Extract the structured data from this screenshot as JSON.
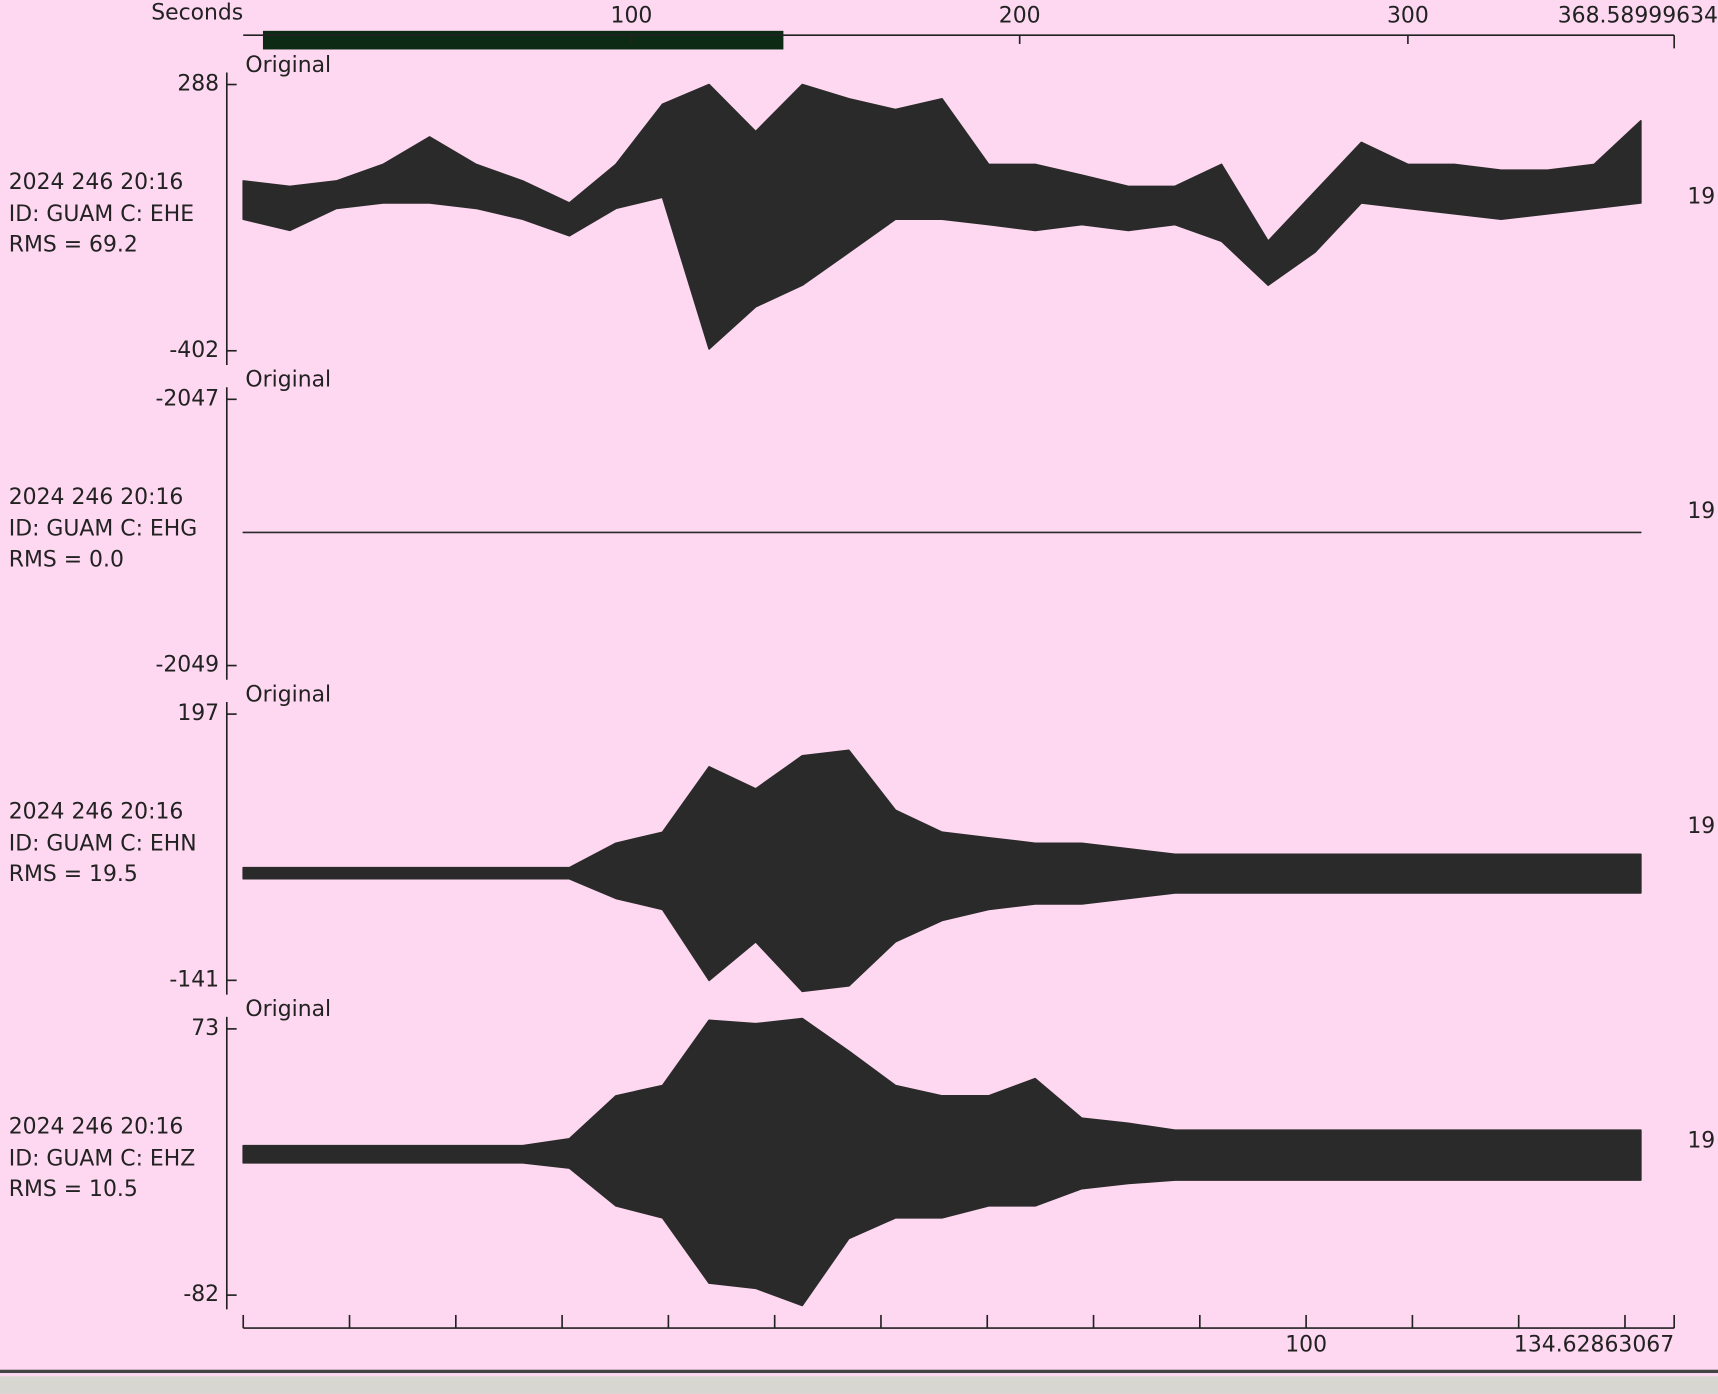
{
  "top_axis": {
    "title": "Seconds",
    "xlim": [
      0,
      368.58999634
    ],
    "xticks": [
      100,
      200,
      300
    ]
  },
  "sample_times": [
    0,
    12,
    24,
    36,
    48,
    60,
    72,
    84,
    96,
    108,
    120,
    132,
    144,
    156,
    168,
    180,
    192,
    204,
    216,
    228,
    240,
    252,
    264,
    276,
    288,
    300,
    312,
    324,
    336,
    348,
    360
  ],
  "traces": [
    {
      "tag": "Original",
      "time": "2024 246 20:16",
      "id": "ID: GUAM C: EHE",
      "rms": "RMS = 69.2",
      "right_label": "19",
      "ylim": [
        -402,
        288
      ],
      "yticks": [
        -402,
        288
      ],
      "max": [
        38,
        24,
        38,
        81,
        152,
        81,
        38,
        -19,
        81,
        237,
        288,
        166,
        288,
        251,
        223,
        251,
        81,
        81,
        53,
        24,
        24,
        81,
        -118,
        10,
        138,
        81,
        81,
        66,
        66,
        81,
        194
      ],
      "min": [
        -61,
        -90,
        -33,
        -19,
        -19,
        -33,
        -61,
        -104,
        -33,
        -4,
        -397,
        -288,
        -232,
        -147,
        -61,
        -61,
        -75,
        -90,
        -75,
        -90,
        -75,
        -118,
        -232,
        -147,
        -19,
        -33,
        -47,
        -61,
        -47,
        -33,
        -19
      ]
    },
    {
      "tag": "Original",
      "time": "2024 246 20:16",
      "id": "ID: GUAM C: EHG",
      "rms": "RMS = 0.0",
      "right_label": "19",
      "ylim": [
        -2049,
        -2047
      ],
      "yticks": [
        -2049,
        -2047
      ],
      "max": [
        -2048,
        -2048,
        -2048,
        -2048,
        -2048,
        -2048,
        -2048,
        -2048,
        -2048,
        -2048,
        -2048,
        -2048,
        -2048,
        -2048,
        -2048,
        -2048,
        -2048,
        -2048,
        -2048,
        -2048,
        -2048,
        -2048,
        -2048,
        -2048,
        -2048,
        -2048,
        -2048,
        -2048,
        -2048,
        -2048,
        -2048
      ],
      "min": [
        -2048,
        -2048,
        -2048,
        -2048,
        -2048,
        -2048,
        -2048,
        -2048,
        -2048,
        -2048,
        -2048,
        -2048,
        -2048,
        -2048,
        -2048,
        -2048,
        -2048,
        -2048,
        -2048,
        -2048,
        -2048,
        -2048,
        -2048,
        -2048,
        -2048,
        -2048,
        -2048,
        -2048,
        -2048,
        -2048,
        -2048
      ]
    },
    {
      "tag": "Original",
      "time": "2024 246 20:16",
      "id": "ID: GUAM C: EHN",
      "rms": "RMS = 19.5",
      "right_label": "19",
      "ylim": [
        -141,
        197
      ],
      "yticks": [
        -141,
        197
      ],
      "max": [
        2,
        2,
        2,
        2,
        2,
        2,
        2,
        2,
        33,
        47,
        130,
        102,
        144,
        151,
        75,
        47,
        40,
        33,
        33,
        26,
        19,
        19,
        19,
        19,
        19,
        19,
        19,
        19,
        19,
        19,
        19
      ],
      "min": [
        -12,
        -12,
        -12,
        -12,
        -12,
        -12,
        -12,
        -12,
        -37,
        -51,
        -141,
        -92,
        -155,
        -148,
        -92,
        -65,
        -51,
        -44,
        -44,
        -37,
        -30,
        -30,
        -30,
        -30,
        -30,
        -30,
        -30,
        -30,
        -30,
        -30,
        -30
      ]
    },
    {
      "tag": "Original",
      "time": "2024 246 20:16",
      "id": "ID: GUAM C: EHZ",
      "rms": "RMS = 10.5",
      "right_label": "19",
      "ylim": [
        -82,
        73
      ],
      "yticks": [
        -82,
        73
      ],
      "max": [
        5,
        5,
        5,
        5,
        5,
        5,
        5,
        9,
        34,
        40,
        78,
        76,
        79,
        60,
        40,
        34,
        34,
        44,
        21,
        18,
        14,
        14,
        14,
        14,
        14,
        14,
        14,
        14,
        14,
        14,
        14
      ],
      "min": [
        -5,
        -5,
        -5,
        -5,
        -5,
        -5,
        -5,
        -8,
        -30,
        -37,
        -75,
        -78,
        -88,
        -49,
        -37,
        -37,
        -30,
        -30,
        -20,
        -17,
        -15,
        -15,
        -15,
        -15,
        -15,
        -15,
        -15,
        -15,
        -15,
        -15,
        -15
      ]
    }
  ],
  "bottom_axis": {
    "xlim": [
      0,
      134.62863067
    ],
    "xticks": [
      0,
      10,
      20,
      30,
      40,
      50,
      60,
      70,
      80,
      90,
      100,
      110,
      120,
      130
    ],
    "xtick_labels": [
      100,
      134.62863067
    ]
  }
}
